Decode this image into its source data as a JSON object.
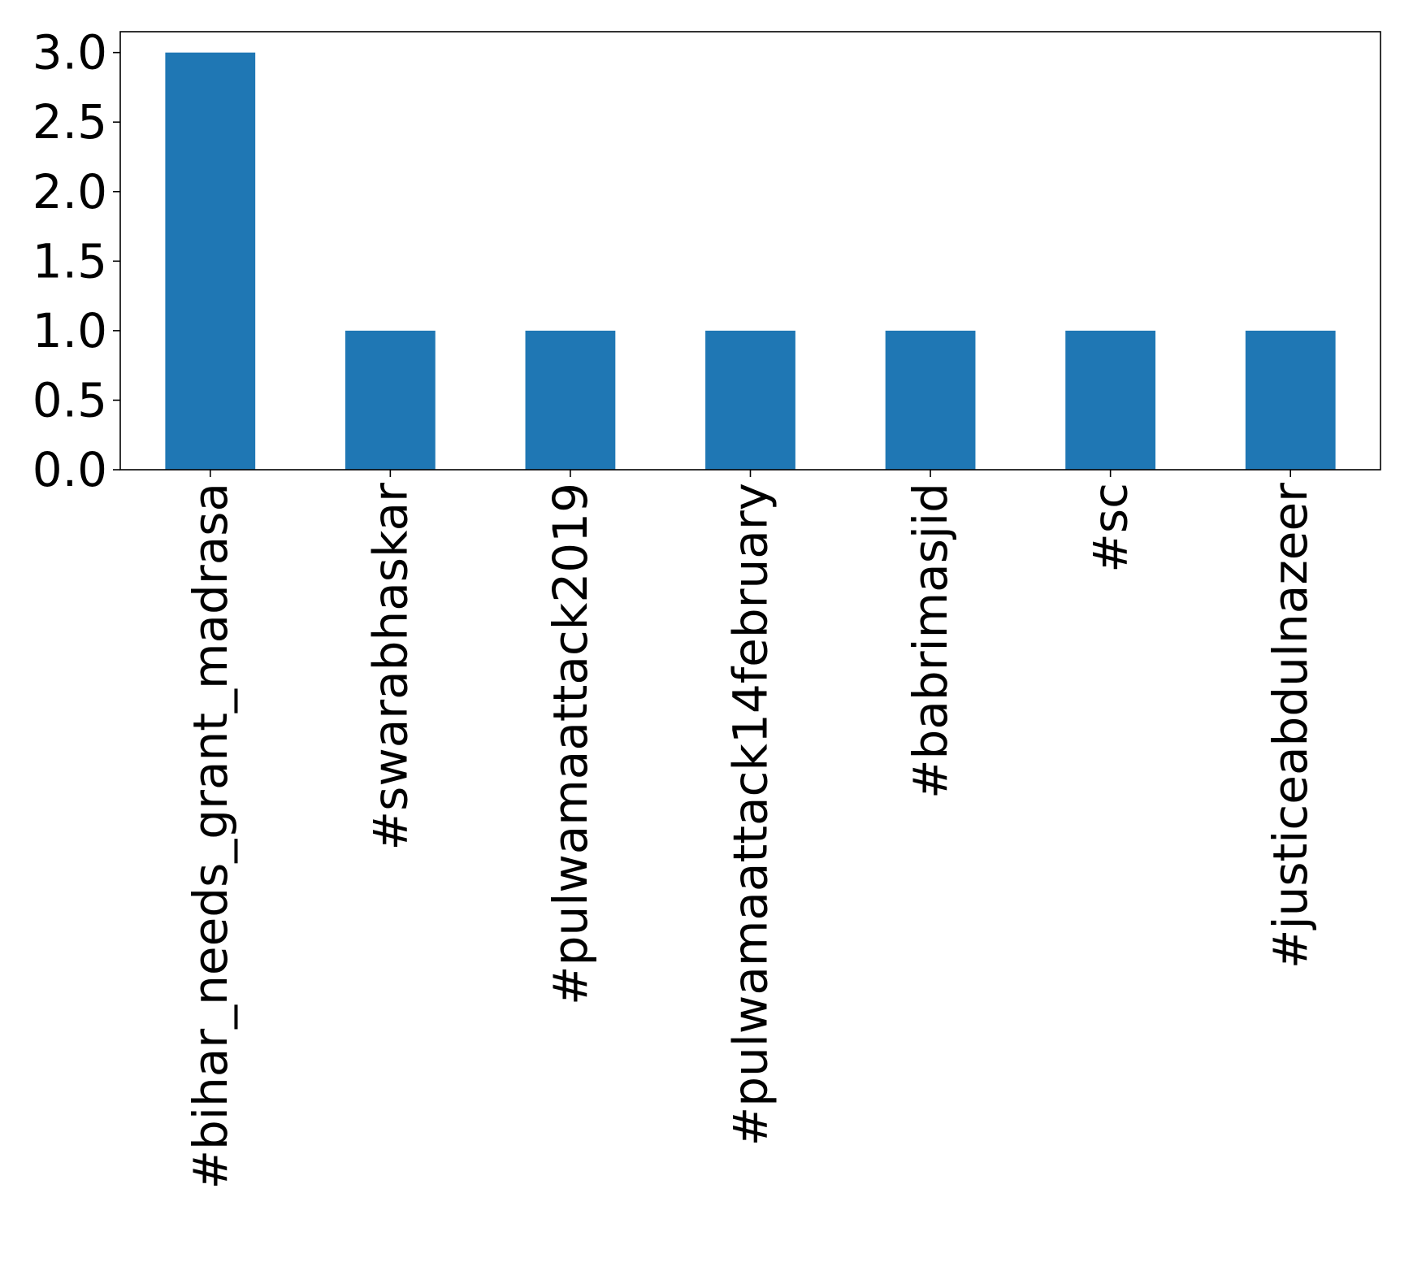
{
  "chart_data": {
    "type": "bar",
    "categories": [
      "#bihar_needs_grant_madrasa",
      "#swarabhaskar",
      "#pulwamaattack2019",
      "#pulwamaattack14february",
      "#babrimasjid",
      "#sc",
      "#justiceabdulnazeer"
    ],
    "values": [
      3,
      1,
      1,
      1,
      1,
      1,
      1
    ],
    "ylim": [
      0,
      3.15
    ],
    "yticks": [
      0.0,
      0.5,
      1.0,
      1.5,
      2.0,
      2.5,
      3.0
    ],
    "ytick_labels": [
      "0.0",
      "0.5",
      "1.0",
      "1.5",
      "2.0",
      "2.5",
      "3.0"
    ],
    "bar_color": "#1f77b4",
    "grid": false,
    "legend": "none",
    "x_label_rotation": "vertical"
  }
}
